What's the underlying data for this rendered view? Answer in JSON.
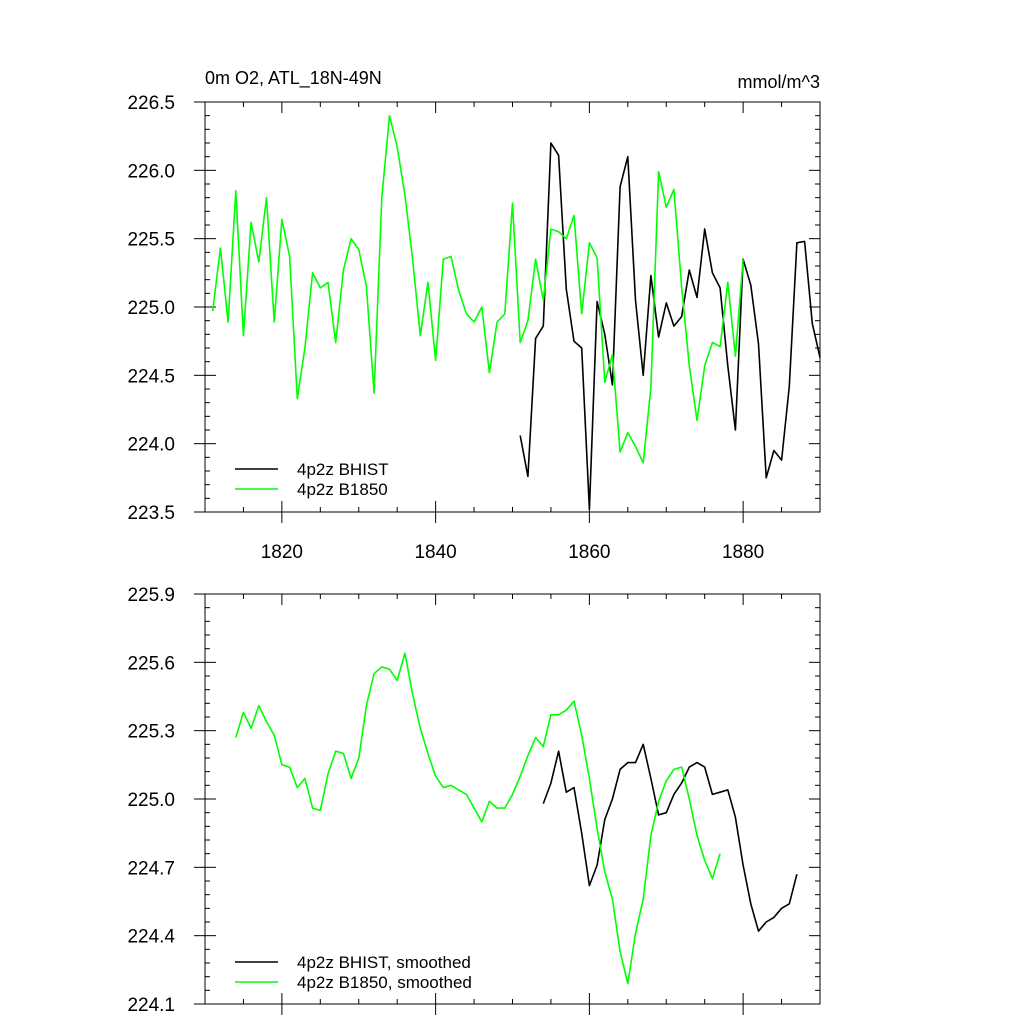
{
  "chart_data": [
    {
      "type": "line",
      "title": "0m O2, ATL_18N-49N",
      "units": "mmol/m^3",
      "xlim": [
        1810,
        1890
      ],
      "ylim": [
        223.5,
        226.5
      ],
      "xticks": [
        1820,
        1840,
        1860,
        1880
      ],
      "xtick_labels": [
        "1820",
        "1840",
        "1860",
        "1880"
      ],
      "yticks": [
        223.5,
        224.0,
        224.5,
        225.0,
        225.5,
        226.0,
        226.5
      ],
      "ytick_labels": [
        "223.5",
        "224.0",
        "224.5",
        "225.0",
        "225.5",
        "226.0",
        "226.5"
      ],
      "legend_position": "bottom-left",
      "series": [
        {
          "name": "4p2z BHIST",
          "color": "#000000",
          "x_start": 1851,
          "values": [
            224.06,
            223.76,
            224.77,
            224.86,
            226.2,
            226.11,
            225.13,
            224.75,
            224.7,
            223.52,
            225.04,
            224.8,
            224.43,
            225.88,
            226.1,
            225.05,
            224.5,
            225.23,
            224.78,
            225.03,
            224.86,
            224.93,
            225.27,
            225.07,
            225.57,
            225.25,
            225.14,
            224.57,
            224.1,
            225.35,
            225.16,
            224.73,
            223.75,
            223.95,
            223.88,
            224.42,
            225.47,
            225.48,
            224.88,
            224.63
          ]
        },
        {
          "name": "4p2z B1850",
          "color": "#00ff00",
          "x_start": 1811,
          "values": [
            224.97,
            225.43,
            224.89,
            225.85,
            224.79,
            225.62,
            225.33,
            225.8,
            224.89,
            225.64,
            225.37,
            224.33,
            224.7,
            225.25,
            225.14,
            225.18,
            224.74,
            225.27,
            225.5,
            225.42,
            225.15,
            224.37,
            225.8,
            226.4,
            226.17,
            225.82,
            225.35,
            224.79,
            225.18,
            224.61,
            225.35,
            225.37,
            225.12,
            224.95,
            224.89,
            225.0,
            224.52,
            224.89,
            224.95,
            225.76,
            224.74,
            224.9,
            225.35,
            225.05,
            225.57,
            225.55,
            225.5,
            225.67,
            224.95,
            225.47,
            225.36,
            224.45,
            224.65,
            223.94,
            224.08,
            223.98,
            223.86,
            224.41,
            225.99,
            225.73,
            225.86,
            225.15,
            224.57,
            224.17,
            224.57,
            224.74,
            224.71,
            225.18,
            224.64,
            225.35
          ]
        }
      ]
    },
    {
      "type": "line",
      "xlim": [
        1810,
        1890
      ],
      "ylim": [
        224.1,
        225.9
      ],
      "xticks": [
        1820,
        1840,
        1860,
        1880
      ],
      "yticks": [
        224.1,
        224.4,
        224.7,
        225.0,
        225.3,
        225.6,
        225.9
      ],
      "ytick_labels": [
        "224.1",
        "224.4",
        "224.7",
        "225.0",
        "225.3",
        "225.6",
        "225.9"
      ],
      "legend_position": "bottom-left",
      "series": [
        {
          "name": "4p2z BHIST, smoothed",
          "color": "#000000",
          "x_start": 1854,
          "values": [
            224.98,
            225.07,
            225.21,
            225.03,
            225.05,
            224.85,
            224.62,
            224.71,
            224.91,
            225.0,
            225.13,
            225.16,
            225.16,
            225.24,
            225.09,
            224.93,
            224.94,
            225.02,
            225.07,
            225.14,
            225.16,
            225.14,
            225.02,
            225.03,
            225.04,
            224.92,
            224.71,
            224.54,
            224.42,
            224.46,
            224.48,
            224.52,
            224.54,
            224.67
          ]
        },
        {
          "name": "4p2z B1850, smoothed",
          "color": "#00ff00",
          "x_start": 1814,
          "values": [
            225.27,
            225.38,
            225.31,
            225.41,
            225.34,
            225.28,
            225.15,
            225.14,
            225.05,
            225.09,
            224.96,
            224.95,
            225.11,
            225.21,
            225.2,
            225.09,
            225.18,
            225.41,
            225.55,
            225.58,
            225.57,
            225.52,
            225.64,
            225.46,
            225.31,
            225.2,
            225.1,
            225.05,
            225.06,
            225.04,
            225.02,
            224.96,
            224.9,
            224.99,
            224.96,
            224.96,
            225.02,
            225.1,
            225.19,
            225.27,
            225.23,
            225.37,
            225.37,
            225.39,
            225.43,
            225.28,
            225.09,
            224.87,
            224.68,
            224.56,
            224.33,
            224.19,
            224.41,
            224.56,
            224.84,
            224.99,
            225.08,
            225.13,
            225.14,
            225.0,
            224.84,
            224.73,
            224.65,
            224.76
          ]
        }
      ]
    }
  ]
}
